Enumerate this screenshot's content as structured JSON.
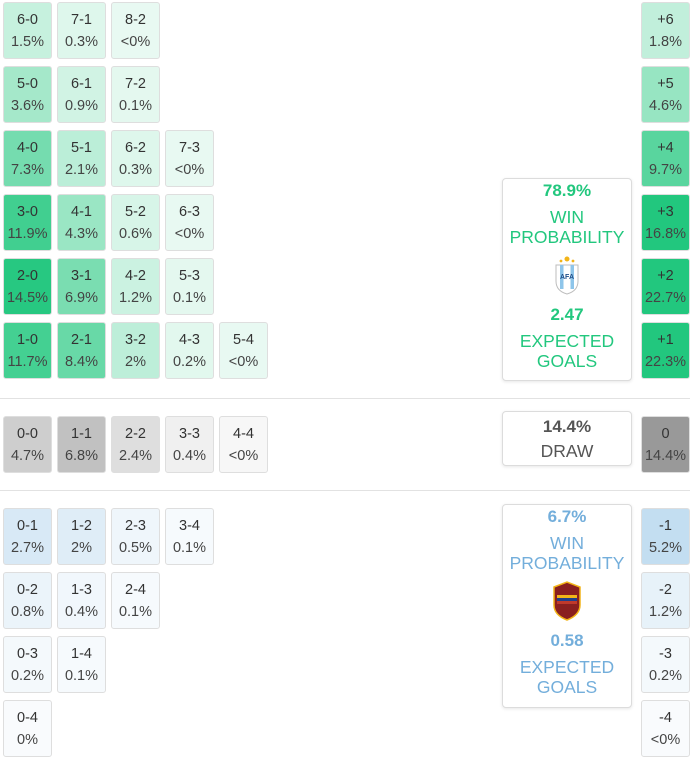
{
  "chart_data": {
    "type": "heatmap",
    "home_wins": [
      {
        "score": "6-0",
        "prob": "1.5%"
      },
      {
        "score": "7-1",
        "prob": "0.3%"
      },
      {
        "score": "8-2",
        "prob": "<0%"
      },
      {
        "score": "5-0",
        "prob": "3.6%"
      },
      {
        "score": "6-1",
        "prob": "0.9%"
      },
      {
        "score": "7-2",
        "prob": "0.1%"
      },
      {
        "score": "4-0",
        "prob": "7.3%"
      },
      {
        "score": "5-1",
        "prob": "2.1%"
      },
      {
        "score": "6-2",
        "prob": "0.3%"
      },
      {
        "score": "7-3",
        "prob": "<0%"
      },
      {
        "score": "3-0",
        "prob": "11.9%"
      },
      {
        "score": "4-1",
        "prob": "4.3%"
      },
      {
        "score": "5-2",
        "prob": "0.6%"
      },
      {
        "score": "6-3",
        "prob": "<0%"
      },
      {
        "score": "2-0",
        "prob": "14.5%"
      },
      {
        "score": "3-1",
        "prob": "6.9%"
      },
      {
        "score": "4-2",
        "prob": "1.2%"
      },
      {
        "score": "5-3",
        "prob": "0.1%"
      },
      {
        "score": "1-0",
        "prob": "11.7%"
      },
      {
        "score": "2-1",
        "prob": "8.4%"
      },
      {
        "score": "3-2",
        "prob": "2%"
      },
      {
        "score": "4-3",
        "prob": "0.2%"
      },
      {
        "score": "5-4",
        "prob": "<0%"
      }
    ],
    "draws": [
      {
        "score": "0-0",
        "prob": "4.7%"
      },
      {
        "score": "1-1",
        "prob": "6.8%"
      },
      {
        "score": "2-2",
        "prob": "2.4%"
      },
      {
        "score": "3-3",
        "prob": "0.4%"
      },
      {
        "score": "4-4",
        "prob": "<0%"
      }
    ],
    "away_wins": [
      {
        "score": "0-1",
        "prob": "2.7%"
      },
      {
        "score": "1-2",
        "prob": "2%"
      },
      {
        "score": "2-3",
        "prob": "0.5%"
      },
      {
        "score": "3-4",
        "prob": "0.1%"
      },
      {
        "score": "0-2",
        "prob": "0.8%"
      },
      {
        "score": "1-3",
        "prob": "0.4%"
      },
      {
        "score": "2-4",
        "prob": "0.1%"
      },
      {
        "score": "0-3",
        "prob": "0.2%"
      },
      {
        "score": "1-4",
        "prob": "0.1%"
      },
      {
        "score": "0-4",
        "prob": "0%"
      }
    ],
    "margins": [
      {
        "label": "+6",
        "prob": "1.8%"
      },
      {
        "label": "+5",
        "prob": "4.6%"
      },
      {
        "label": "+4",
        "prob": "9.7%"
      },
      {
        "label": "+3",
        "prob": "16.8%"
      },
      {
        "label": "+2",
        "prob": "22.7%"
      },
      {
        "label": "+1",
        "prob": "22.3%"
      },
      {
        "label": "0",
        "prob": "14.4%"
      },
      {
        "label": "-1",
        "prob": "5.2%"
      },
      {
        "label": "-2",
        "prob": "1.2%"
      },
      {
        "label": "-3",
        "prob": "0.2%"
      },
      {
        "label": "-4",
        "prob": "<0%"
      }
    ]
  },
  "home_card": {
    "win_pct": "78.9%",
    "win_label_1": "WIN",
    "win_label_2": "PROBABILITY",
    "xg": "2.47",
    "xg_label_1": "EXPECTED",
    "xg_label_2": "GOALS",
    "crest_icon": "argentina-crest-icon",
    "color": "#22c77e"
  },
  "draw_card": {
    "pct": "14.4%",
    "label": "DRAW"
  },
  "away_card": {
    "win_pct": "6.7%",
    "win_label_1": "WIN",
    "win_label_2": "PROBABILITY",
    "xg": "0.58",
    "xg_label_1": "EXPECTED",
    "xg_label_2": "GOALS",
    "crest_icon": "venezuela-crest-icon",
    "color": "#73aedb"
  }
}
